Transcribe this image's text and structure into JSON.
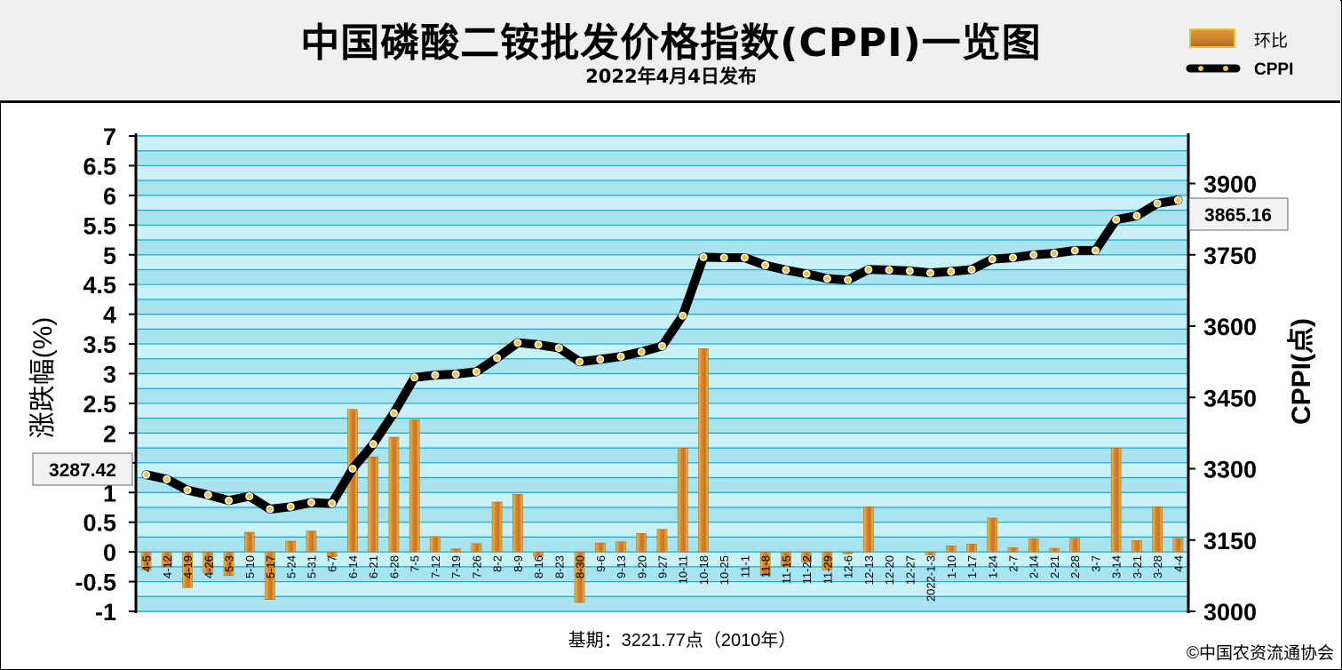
{
  "header": {
    "title": "中国磷酸二铵批发价格指数(CPPI)一览图",
    "subtitle": "2022年4月4日发布"
  },
  "footer": {
    "base_period": "基期：3221.77点（2010年）",
    "copyright": "©中国农资流通协会"
  },
  "callouts": {
    "first_value": "3287.42",
    "last_value": "3865.16"
  },
  "colors": {
    "plot_bg": "#b3ebf5",
    "grid": "#1aa8d8",
    "bar": "#d9832a",
    "bar_highlight": "#f4d03f",
    "line": "#000000",
    "marker": "#f5c242"
  },
  "chart_data": {
    "type": "bar",
    "title": "中国磷酸二铵批发价格指数(CPPI)一览图",
    "subtitle": "2022年4月4日发布",
    "categories": [
      "4-5",
      "4-12",
      "4-19",
      "4-26",
      "5-3",
      "5-10",
      "5-17",
      "5-24",
      "5-31",
      "6-7",
      "6-14",
      "6-21",
      "6-28",
      "7-5",
      "7-12",
      "7-19",
      "7-26",
      "8-2",
      "8-9",
      "8-16",
      "8-23",
      "8-30",
      "9-6",
      "9-13",
      "9-20",
      "9-27",
      "10-11",
      "10-18",
      "10-25",
      "11-1",
      "11-8",
      "11-15",
      "11-22",
      "11-29",
      "12-6",
      "12-13",
      "12-20",
      "12-27",
      "2022-1-3",
      "1-10",
      "1-17",
      "1-24",
      "2-7",
      "2-14",
      "2-21",
      "2-28",
      "3-7",
      "3-14",
      "3-21",
      "3-28",
      "4-4"
    ],
    "y_left": {
      "label": "涨跌幅(%)",
      "ylim": [
        -1,
        7
      ],
      "ticks": [
        "7",
        "6.5",
        "6",
        "5.5",
        "5",
        "4.5",
        "4",
        "3.5",
        "3",
        "2.5",
        "2",
        "1.5",
        "1",
        "0.5",
        "0",
        "-0.5",
        "-1"
      ]
    },
    "y_right": {
      "label": "CPPI(点)",
      "ylim": [
        3000,
        4000
      ],
      "ticks": [
        "3900",
        "3750",
        "3600",
        "3450",
        "3300",
        "3150",
        "3000"
      ]
    },
    "series": [
      {
        "name": "环比",
        "type": "bar",
        "axis": "left",
        "values": [
          -0.3,
          -0.25,
          -0.6,
          -0.35,
          -0.4,
          0.33,
          -0.8,
          0.18,
          0.35,
          -0.08,
          2.4,
          1.6,
          1.93,
          2.22,
          0.26,
          0.05,
          0.14,
          0.84,
          0.97,
          -0.07,
          0,
          -0.85,
          0.15,
          0.17,
          0.31,
          0.38,
          1.75,
          3.42,
          0,
          0,
          -0.4,
          -0.25,
          -0.17,
          -0.3,
          -0.03,
          0.76,
          0,
          0,
          -0.05,
          0.1,
          0.13,
          0.57,
          0.07,
          0.22,
          0.06,
          0.23,
          0,
          1.75,
          0.19,
          0.76,
          0.23
        ]
      },
      {
        "name": "CPPI",
        "type": "line",
        "axis": "right",
        "values": [
          3287.42,
          3278,
          3255,
          3245,
          3233,
          3242,
          3215,
          3220,
          3229,
          3227,
          3300,
          3352,
          3417,
          3492,
          3497,
          3499,
          3504,
          3533,
          3565,
          3561,
          3554,
          3525,
          3530,
          3536,
          3546,
          3558,
          3622,
          3745,
          3744,
          3744,
          3728,
          3718,
          3710,
          3700,
          3697,
          3719,
          3718,
          3716,
          3712,
          3715,
          3719,
          3741,
          3744,
          3750,
          3753,
          3759,
          3759,
          3824,
          3832,
          3858,
          3865.16
        ]
      }
    ]
  }
}
